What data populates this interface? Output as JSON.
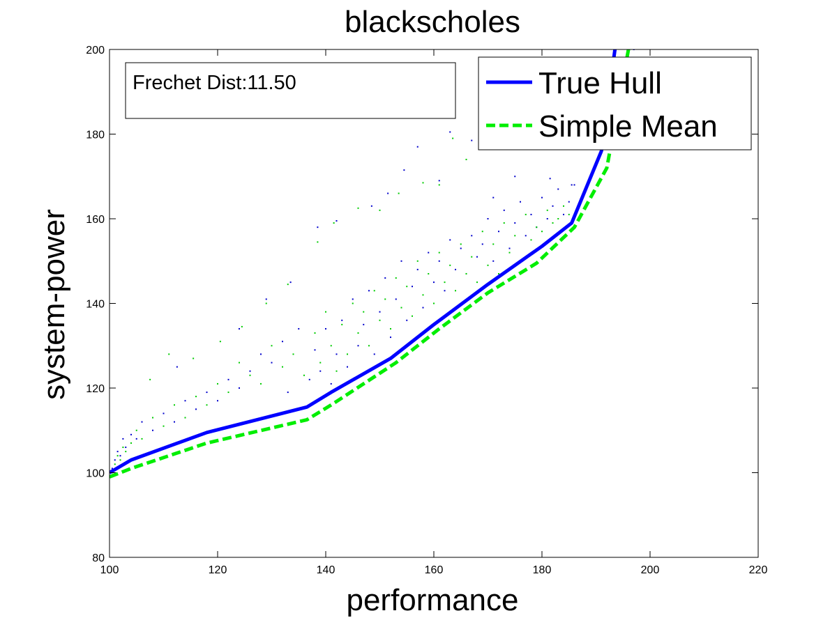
{
  "chart_data": {
    "type": "scatter",
    "title": "blackscholes",
    "xlabel": "performance",
    "ylabel": "system-power",
    "xlim": [
      100,
      220
    ],
    "ylim": [
      80,
      200
    ],
    "xticks": [
      "100",
      "120",
      "140",
      "160",
      "180",
      "200",
      "220"
    ],
    "yticks": [
      "80",
      "100",
      "120",
      "140",
      "160",
      "180",
      "200"
    ],
    "grid": false,
    "legend_position": "top-right",
    "annotation": "Frechet Dist:11.50",
    "series": [
      {
        "name": "True Hull",
        "kind": "line",
        "style": "solid",
        "color": "#0000ff",
        "x": [
          100.0,
          104.0,
          118.0,
          136.5,
          141.0,
          152.0,
          160.0,
          170.0,
          180.0,
          185.5,
          191.0,
          193.5
        ],
        "y": [
          100.0,
          103.0,
          109.5,
          115.5,
          119.0,
          127.0,
          135.0,
          144.5,
          153.5,
          159.0,
          176.0,
          200.0
        ]
      },
      {
        "name": "Simple Mean",
        "kind": "line",
        "style": "dashed",
        "color": "#00ee00",
        "x": [
          100.0,
          104.0,
          118.0,
          136.5,
          141.0,
          153.0,
          161.0,
          170.0,
          179.0,
          186.0,
          192.0,
          196.0
        ],
        "y": [
          99.0,
          101.0,
          107.0,
          112.5,
          116.0,
          126.0,
          134.0,
          142.5,
          149.5,
          158.0,
          172.0,
          200.0
        ]
      },
      {
        "name": "",
        "kind": "points",
        "color": "#0000cc",
        "x": [
          100.5,
          101.0,
          101.5,
          102.0,
          102.5,
          103.0,
          104.0,
          105.0,
          106.0,
          108.0,
          110.0,
          112.0,
          114.0,
          116.0,
          118.0,
          120.0,
          122.0,
          124.0,
          126.0,
          128.0,
          130.0,
          132.0,
          133.0,
          135.0,
          137.0,
          138.0,
          139.0,
          140.0,
          141.0,
          142.0,
          143.0,
          144.0,
          145.0,
          146.0,
          147.0,
          148.0,
          149.0,
          150.0,
          151.0,
          152.0,
          153.0,
          154.0,
          155.0,
          156.0,
          157.0,
          158.0,
          159.0,
          160.0,
          161.0,
          162.0,
          163.0,
          164.0,
          165.0,
          166.0,
          167.0,
          168.0,
          169.0,
          170.0,
          171.0,
          172.0,
          173.0,
          174.0,
          175.0,
          176.0,
          177.0,
          178.0,
          179.0,
          180.0,
          181.0,
          182.0,
          183.0,
          184.0,
          185.0,
          186.0,
          112.5,
          124.0,
          129.0,
          133.5,
          138.5,
          142.0,
          148.5,
          151.5,
          154.5,
          157.0,
          161.0,
          163.0,
          167.0,
          171.0,
          175.0,
          181.5,
          185.5,
          193.0,
          197.0
        ],
        "y": [
          101.0,
          103.0,
          105.0,
          104.0,
          108.0,
          106.0,
          109.0,
          108.0,
          112.0,
          110.0,
          114.0,
          112.0,
          117.0,
          115.0,
          119.0,
          117.0,
          122.0,
          120.0,
          124.0,
          128.0,
          126.0,
          131.0,
          119.0,
          134.0,
          122.0,
          129.0,
          124.0,
          134.0,
          121.0,
          128.0,
          136.0,
          125.0,
          141.0,
          130.0,
          135.0,
          143.0,
          128.0,
          138.0,
          146.0,
          132.0,
          141.0,
          150.0,
          136.0,
          144.0,
          148.0,
          139.0,
          152.0,
          145.0,
          150.0,
          143.0,
          155.0,
          148.0,
          153.0,
          147.0,
          156.0,
          151.0,
          154.0,
          160.0,
          150.0,
          157.0,
          162.0,
          153.0,
          159.0,
          164.0,
          156.0,
          161.0,
          158.0,
          165.0,
          160.0,
          163.0,
          167.0,
          161.0,
          164.0,
          168.0,
          125.0,
          134.0,
          141.0,
          145.0,
          158.0,
          159.5,
          163.0,
          166.0,
          171.5,
          177.0,
          169.0,
          180.5,
          178.5,
          165.0,
          170.0,
          169.5,
          168.0,
          198.0,
          200.0
        ]
      },
      {
        "name": "",
        "kind": "points",
        "color": "#00cc00",
        "x": [
          100.5,
          101.0,
          101.5,
          102.0,
          102.5,
          103.0,
          104.0,
          105.0,
          106.0,
          108.0,
          110.0,
          112.0,
          114.0,
          116.0,
          118.0,
          120.0,
          122.0,
          124.0,
          126.0,
          128.0,
          130.0,
          132.0,
          134.0,
          136.0,
          138.0,
          139.0,
          140.0,
          141.0,
          142.0,
          143.0,
          144.0,
          145.0,
          146.0,
          147.0,
          148.0,
          149.0,
          150.0,
          151.0,
          152.0,
          153.0,
          154.0,
          155.0,
          156.0,
          157.0,
          158.0,
          159.0,
          160.0,
          161.0,
          162.0,
          163.0,
          164.0,
          165.0,
          166.0,
          167.0,
          168.0,
          169.0,
          170.0,
          171.0,
          172.0,
          173.0,
          174.0,
          175.0,
          176.0,
          177.0,
          178.0,
          179.0,
          180.0,
          181.0,
          182.0,
          183.0,
          184.0,
          185.0,
          107.5,
          111.0,
          115.5,
          120.5,
          124.5,
          129.0,
          133.0,
          138.5,
          141.5,
          146.0,
          150.0,
          153.5,
          158.0,
          161.0,
          163.5,
          166.0
        ],
        "y": [
          100.0,
          102.0,
          104.0,
          103.0,
          106.0,
          105.0,
          107.0,
          110.0,
          108.0,
          113.0,
          111.0,
          116.0,
          113.0,
          118.0,
          116.0,
          121.0,
          119.0,
          126.0,
          123.0,
          121.0,
          130.0,
          125.0,
          128.0,
          123.0,
          133.0,
          126.0,
          138.0,
          130.0,
          124.0,
          135.0,
          128.0,
          140.0,
          133.0,
          138.0,
          130.0,
          143.0,
          136.0,
          141.0,
          134.0,
          146.0,
          139.0,
          144.0,
          137.0,
          150.0,
          142.0,
          147.0,
          140.0,
          152.0,
          145.0,
          149.0,
          143.0,
          154.0,
          147.0,
          151.0,
          145.0,
          157.0,
          149.0,
          154.0,
          147.0,
          159.0,
          152.0,
          156.0,
          150.0,
          161.0,
          155.0,
          158.0,
          157.0,
          162.0,
          159.0,
          160.0,
          163.0,
          161.0,
          122.0,
          128.0,
          127.0,
          131.0,
          134.5,
          140.0,
          144.5,
          154.5,
          159.0,
          162.5,
          162.0,
          166.0,
          168.5,
          168.0,
          179.0,
          174.0
        ]
      }
    ]
  }
}
